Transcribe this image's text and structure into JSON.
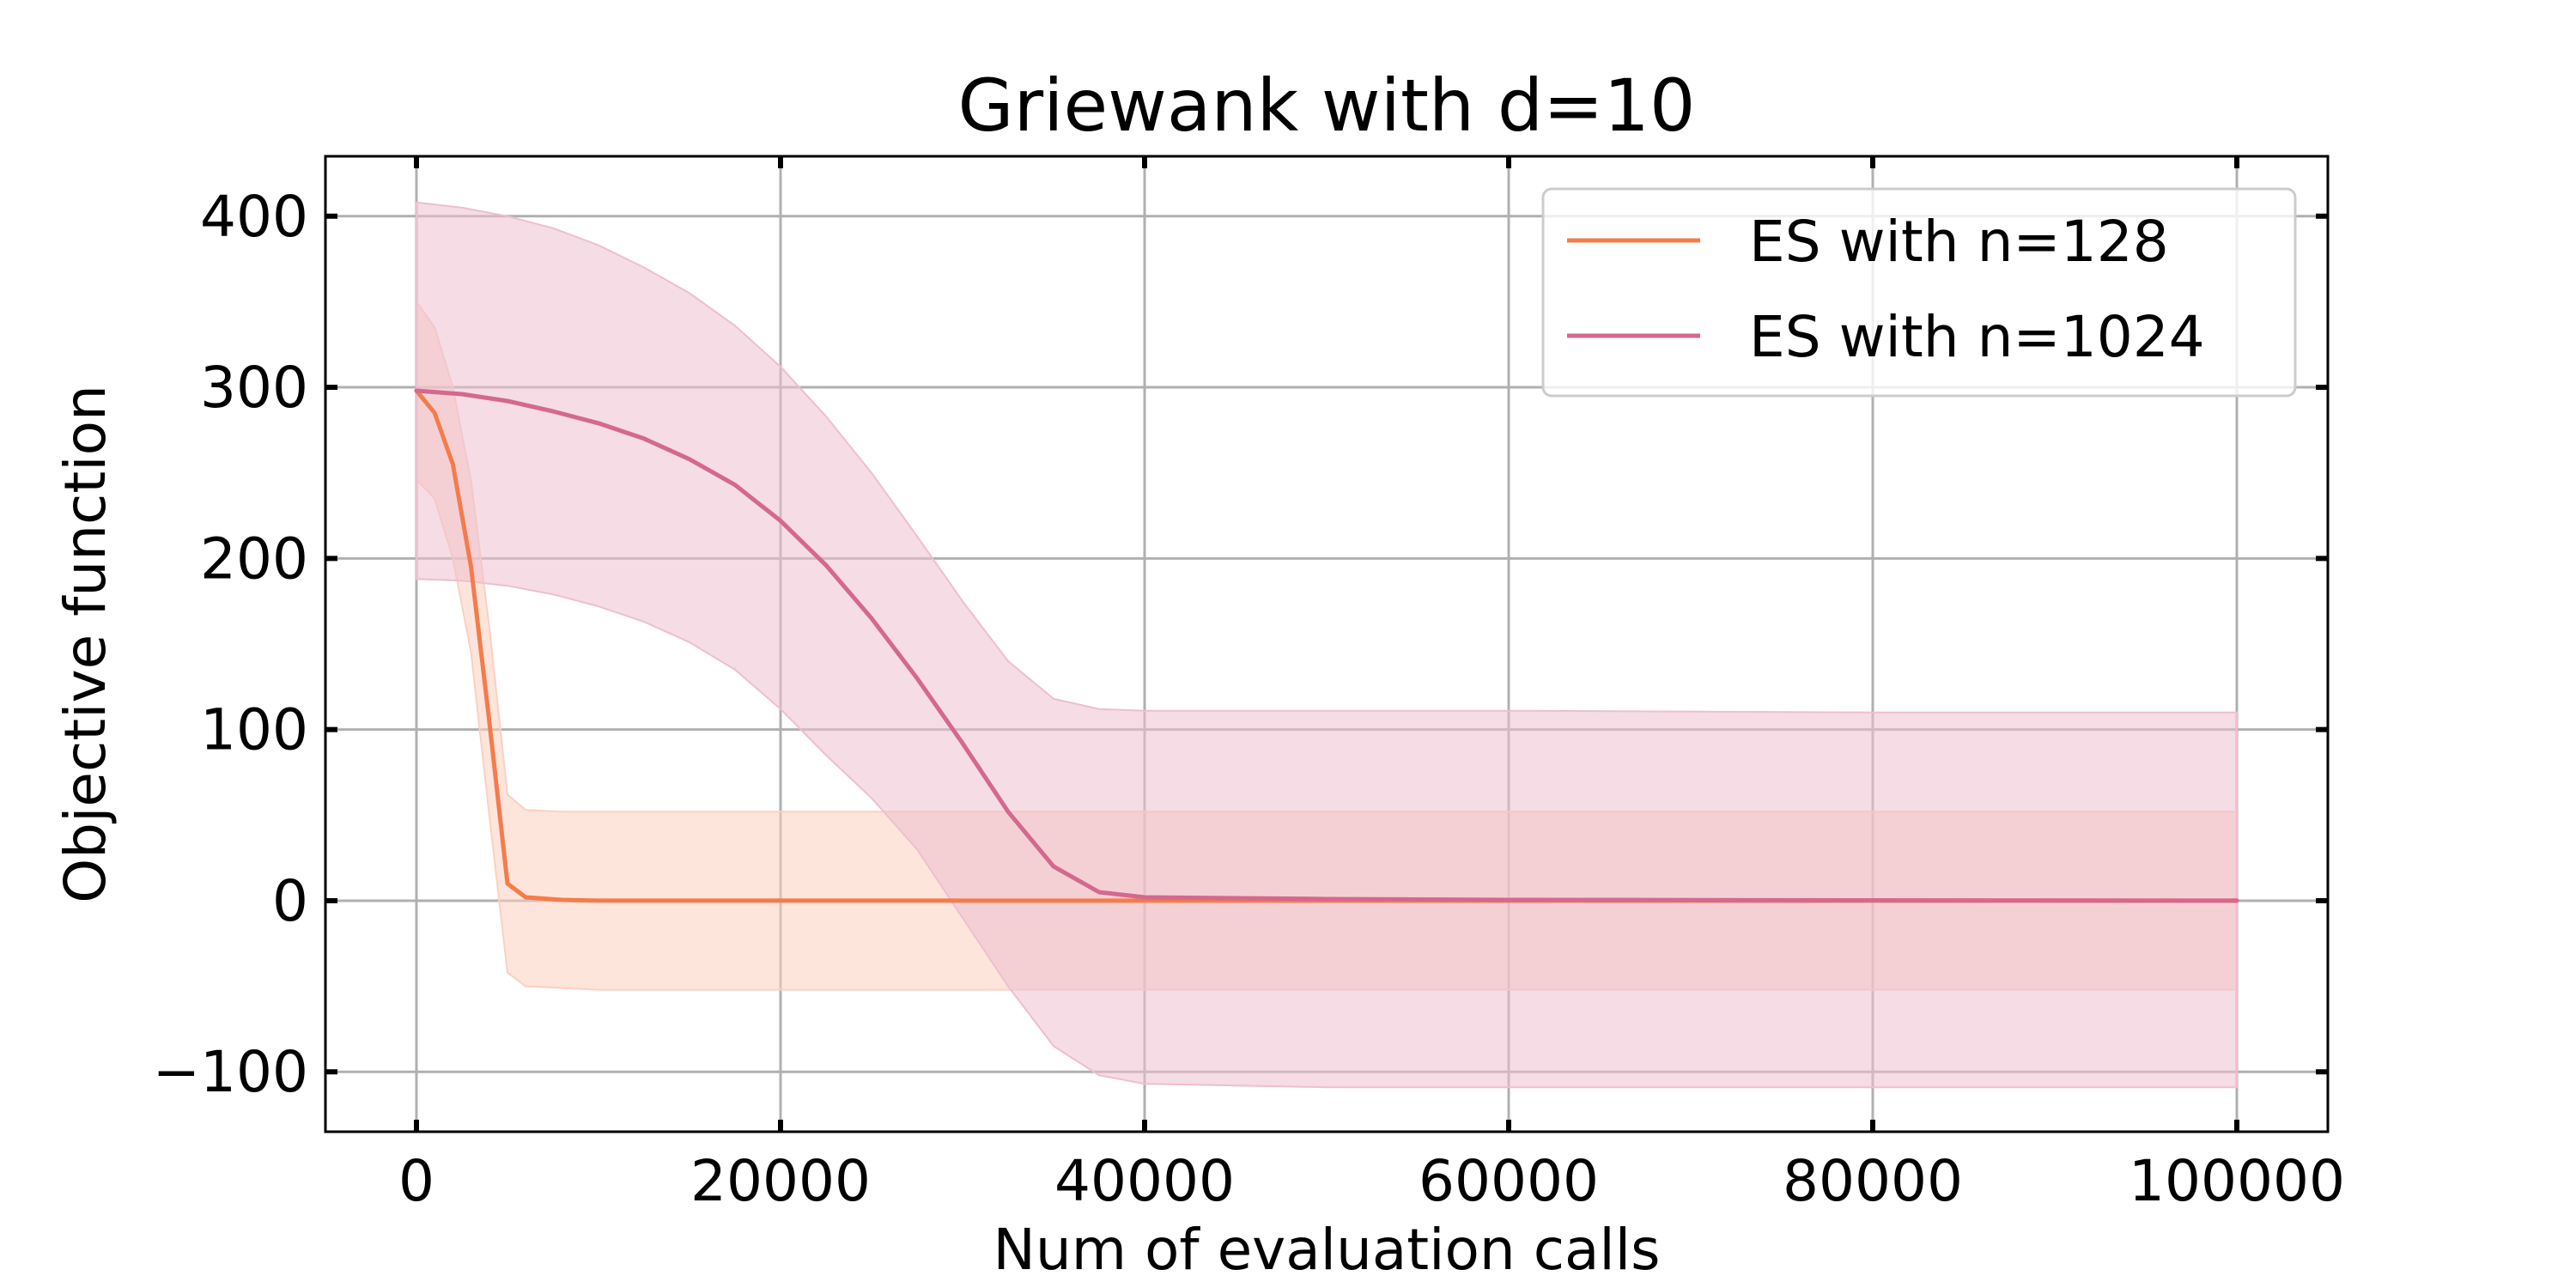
{
  "chart_data": {
    "type": "line",
    "title": "Griewank with d=10",
    "xlabel": "Num of evaluation calls",
    "ylabel": "Objective function",
    "xlim": [
      -5000,
      105000
    ],
    "ylim": [
      -135,
      435
    ],
    "xticks": [
      0,
      20000,
      40000,
      60000,
      80000,
      100000
    ],
    "xtick_labels": [
      "0",
      "20000",
      "40000",
      "60000",
      "80000",
      "100000"
    ],
    "yticks": [
      -100,
      0,
      100,
      200,
      300,
      400
    ],
    "ytick_labels": [
      "−100",
      "0",
      "100",
      "200",
      "300",
      "400"
    ],
    "grid": true,
    "legend_position": "top-right",
    "series": [
      {
        "name": "ES with n=128",
        "color": "#f47c4b",
        "fill_color": "#fcd0c0",
        "x": [
          0,
          1000,
          2000,
          3000,
          4000,
          5000,
          6000,
          8000,
          10000,
          20000,
          40000,
          60000,
          80000,
          100000
        ],
        "mean": [
          298,
          285,
          255,
          195,
          105,
          10,
          2,
          0.5,
          0,
          0,
          0,
          0,
          0,
          0
        ],
        "upper": [
          350,
          335,
          300,
          245,
          160,
          62,
          53,
          52,
          52,
          52,
          52,
          52,
          52,
          52
        ],
        "lower": [
          246,
          235,
          200,
          145,
          50,
          -42,
          -50,
          -51,
          -52,
          -52,
          -52,
          -52,
          -52,
          -52
        ]
      },
      {
        "name": "ES with n=1024",
        "color": "#d4688f",
        "fill_color": "#edbfcf",
        "x": [
          0,
          2500,
          5000,
          7500,
          10000,
          12500,
          15000,
          17500,
          20000,
          22500,
          25000,
          27500,
          30000,
          32500,
          35000,
          37500,
          40000,
          45000,
          50000,
          60000,
          80000,
          100000
        ],
        "mean": [
          298,
          296,
          292,
          286,
          279,
          270,
          258,
          243,
          222,
          196,
          165,
          130,
          92,
          52,
          20,
          5,
          2,
          1.5,
          1,
          0.5,
          0.2,
          0
        ],
        "upper": [
          408,
          405,
          400,
          393,
          383,
          370,
          355,
          336,
          312,
          283,
          250,
          213,
          175,
          140,
          118,
          112,
          111,
          111,
          111,
          111,
          110,
          110
        ],
        "lower": [
          188,
          187,
          184,
          179,
          172,
          163,
          151,
          135,
          112,
          85,
          60,
          30,
          -10,
          -50,
          -85,
          -102,
          -107,
          -108,
          -109,
          -109,
          -109,
          -109
        ]
      }
    ]
  }
}
